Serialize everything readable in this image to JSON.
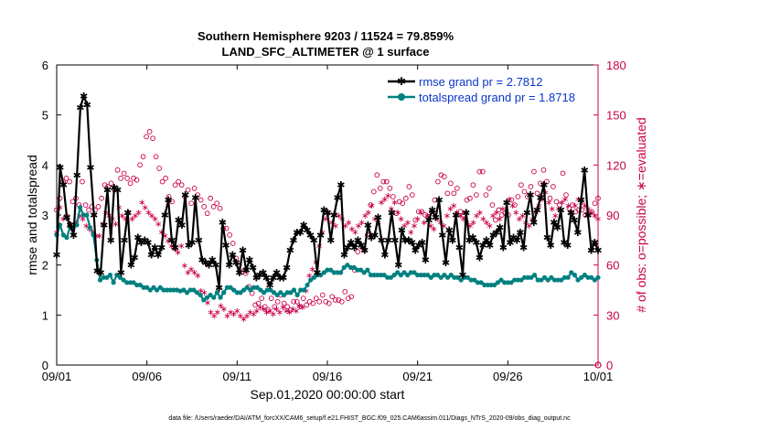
{
  "chart_data": {
    "type": "line",
    "title_line1": "Southern Hemisphere 9203 / 11524 = 79.859%",
    "title_line2": "LAND_SFC_ALTIMETER @ 1 surface",
    "xlabel": "Sep.01,2020 00:00:00 start",
    "ylabel_left": "rmse and totalspread",
    "ylabel_right": "# of obs: o=possible; ∗=evaluated",
    "footer": "data file: /Users/raeder/DAI/ATM_forcXX/CAM6_setup/f.e21.FHIST_BGC.f09_025.CAM6assim.011/Diags_NTrS_2020-09/obs_diag_output.nc",
    "xlim": [
      0,
      30
    ],
    "ylim_left": [
      0,
      6
    ],
    "ylim_right": [
      0,
      180
    ],
    "x_ticks": [
      0,
      5,
      10,
      15,
      20,
      25,
      30
    ],
    "x_tick_labels": [
      "09/01",
      "09/06",
      "09/11",
      "09/16",
      "09/21",
      "09/26",
      "10/01"
    ],
    "y_left_ticks": [
      "0",
      "1",
      "2",
      "3",
      "4",
      "5",
      "6"
    ],
    "y_right_ticks": [
      "0",
      "30",
      "60",
      "90",
      "120",
      "150",
      "180"
    ],
    "colors": {
      "rmse": "#000000",
      "spread": "#008080",
      "obs": "#c8004a",
      "legend_text": "#0a37c8"
    },
    "series": [
      {
        "name": "rmse grand pr = 2.7812",
        "values": [
          2.2,
          3.95,
          3.6,
          2.95,
          2.8,
          2.6,
          3.8,
          5.15,
          5.38,
          5.2,
          3.95,
          3.0,
          1.88,
          1.85,
          2.8,
          3.5,
          2.5,
          3.55,
          3.5,
          1.85,
          2.5,
          3.05,
          2.0,
          2.15,
          2.55,
          2.45,
          2.5,
          2.45,
          2.2,
          2.35,
          2.2,
          2.35,
          3.0,
          3.3,
          2.5,
          2.35,
          2.9,
          2.8,
          3.4,
          2.4,
          2.45,
          3.35,
          2.5,
          2.1,
          2.05,
          2.0,
          2.1,
          2.0,
          1.55,
          2.85,
          2.4,
          2.0,
          2.2,
          2.05,
          1.85,
          2.3,
          1.9,
          2.1,
          1.95,
          1.75,
          1.8,
          1.85,
          1.75,
          1.6,
          1.75,
          1.85,
          1.75,
          1.75,
          1.95,
          2.3,
          2.5,
          2.65,
          2.65,
          2.8,
          2.7,
          2.6,
          2.5,
          1.85,
          2.6,
          3.1,
          3.05,
          2.5,
          3.0,
          3.35,
          3.6,
          2.2,
          2.35,
          2.45,
          2.35,
          2.5,
          2.4,
          2.3,
          2.8,
          2.55,
          2.6,
          2.95,
          2.5,
          2.2,
          2.5,
          3.05,
          2.5,
          2.0,
          2.7,
          2.5,
          2.5,
          2.45,
          2.3,
          2.4,
          2.45,
          2.1,
          2.9,
          3.1,
          2.95,
          3.3,
          2.6,
          2.05,
          2.7,
          2.5,
          3.0,
          2.35,
          1.8,
          3.05,
          2.5,
          2.55,
          2.45,
          2.15,
          2.4,
          2.5,
          2.4,
          2.6,
          2.65,
          2.75,
          2.35,
          3.25,
          2.45,
          2.55,
          2.5,
          2.65,
          2.35,
          3.05,
          3.4,
          2.85,
          3.1,
          3.35,
          3.6,
          2.55,
          2.4,
          2.85,
          2.75,
          3.1,
          2.45,
          2.4,
          3.05,
          2.9,
          2.65,
          3.3,
          3.9,
          3.0,
          2.3,
          2.45,
          2.3
        ]
      },
      {
        "name": "totalspread grand pr = 1.8718",
        "values": [
          2.6,
          2.8,
          2.6,
          2.55,
          2.75,
          2.75,
          2.8,
          3.15,
          3.0,
          3.0,
          2.75,
          2.6,
          2.1,
          1.7,
          1.75,
          1.75,
          1.8,
          1.65,
          1.8,
          1.75,
          1.7,
          1.65,
          1.65,
          1.65,
          1.6,
          1.6,
          1.55,
          1.55,
          1.5,
          1.55,
          1.5,
          1.55,
          1.5,
          1.5,
          1.5,
          1.5,
          1.5,
          1.48,
          1.5,
          1.45,
          1.5,
          1.5,
          1.45,
          1.4,
          1.3,
          1.35,
          1.4,
          1.35,
          1.45,
          1.35,
          1.45,
          1.55,
          1.55,
          1.5,
          1.45,
          1.45,
          1.5,
          1.55,
          1.5,
          1.55,
          1.55,
          1.5,
          1.45,
          1.5,
          1.5,
          1.45,
          1.4,
          1.45,
          1.4,
          1.45,
          1.45,
          1.5,
          1.4,
          1.5,
          1.5,
          1.6,
          1.7,
          1.75,
          1.8,
          1.8,
          1.85,
          1.9,
          1.9,
          1.85,
          1.85,
          1.85,
          1.95,
          2.0,
          1.95,
          1.95,
          1.9,
          1.9,
          1.85,
          1.9,
          1.8,
          1.8,
          1.8,
          1.8,
          1.8,
          1.75,
          1.75,
          1.8,
          1.85,
          1.8,
          1.85,
          1.8,
          1.85,
          1.85,
          1.8,
          1.8,
          1.8,
          1.8,
          1.75,
          1.8,
          1.8,
          1.75,
          1.8,
          1.75,
          1.8,
          1.75,
          1.75,
          1.7,
          1.75,
          1.75,
          1.7,
          1.7,
          1.65,
          1.65,
          1.6,
          1.6,
          1.6,
          1.6,
          1.65,
          1.7,
          1.65,
          1.65,
          1.65,
          1.7,
          1.7,
          1.7,
          1.75,
          1.75,
          1.75,
          1.8,
          1.7,
          1.7,
          1.75,
          1.7,
          1.75,
          1.7,
          1.7,
          1.7,
          1.75,
          1.75,
          1.85,
          1.8,
          1.7,
          1.75,
          1.8,
          1.75,
          1.75,
          1.7,
          1.75
        ]
      },
      {
        "name": "obs possible",
        "values": [
          93,
          100,
          110,
          112,
          110,
          98,
          100,
          96,
          110,
          96,
          93,
          95,
          93,
          95,
          100,
          108,
          107,
          109,
          105,
          117,
          112,
          115,
          112,
          109,
          112,
          111,
          120,
          125,
          137,
          140,
          136,
          125,
          118,
          110,
          112,
          101,
          98,
          108,
          110,
          108,
          101,
          105,
          97,
          106,
          102,
          99,
          95,
          91,
          100,
          95,
          97,
          94,
          82,
          82,
          78,
          73,
          64,
          60,
          56,
          55,
          47,
          43,
          36,
          37,
          40,
          35,
          33,
          40,
          35,
          38,
          42,
          37,
          35,
          33,
          38,
          38,
          35,
          40,
          36,
          38,
          37,
          40,
          38,
          42,
          38,
          37,
          41,
          39,
          39,
          38,
          44,
          40,
          41,
          57,
          68,
          71,
          69,
          78,
          96,
          104,
          114,
          106,
          110,
          110,
          106,
          101,
          91,
          98,
          97,
          100,
          107,
          102,
          87,
          92,
          92,
          90,
          89,
          92,
          99,
          110,
          114,
          113,
          103,
          109,
          103,
          106,
          92,
          90,
          99,
          100,
          108,
          102,
          116,
          116,
          102,
          106,
          96,
          87,
          93,
          90,
          91,
          90,
          99,
          96,
          101,
          108,
          104,
          101,
          107,
          116,
          103,
          109,
          117,
          110,
          100,
          107,
          98,
          96,
          115,
          102,
          94,
          96,
          92,
          93,
          93,
          90,
          91,
          92,
          97,
          100
        ]
      },
      {
        "name": "obs evaluated",
        "values": [
          80,
          95,
          88,
          90,
          85,
          82,
          86,
          90,
          88,
          84,
          82,
          80,
          78,
          78,
          85,
          92,
          90,
          88,
          85,
          95,
          90,
          88,
          92,
          88,
          90,
          92,
          98,
          95,
          92,
          90,
          88,
          85,
          80,
          78,
          75,
          72,
          70,
          68,
          72,
          60,
          56,
          58,
          56,
          54,
          45,
          44,
          38,
          32,
          30,
          32,
          36,
          34,
          30,
          32,
          31,
          33,
          30,
          28,
          30,
          32,
          31,
          33,
          35,
          34,
          32,
          33,
          31,
          34,
          32,
          35,
          33,
          32,
          34,
          33,
          36,
          35,
          45,
          54,
          58,
          62,
          72,
          80,
          88,
          92,
          86,
          84,
          90,
          88,
          84,
          86,
          82,
          80,
          84,
          86,
          90,
          92,
          96,
          88,
          86,
          98,
          100,
          102,
          94,
          98,
          92,
          88,
          84,
          86,
          80,
          84,
          88,
          92,
          86,
          90,
          84,
          82,
          88,
          86,
          84,
          90,
          94,
          96,
          92,
          90,
          88,
          86,
          84,
          86,
          90,
          92,
          88,
          86,
          84,
          90,
          92,
          88,
          94,
          98,
          100,
          96,
          92,
          88,
          90,
          86,
          84,
          88,
          92,
          96,
          100,
          104,
          98,
          94,
          90,
          94,
          98,
          100,
          96,
          92,
          96,
          100,
          98,
          96,
          94,
          92,
          90,
          88
        ]
      }
    ],
    "obs_end_x": 30,
    "obs_end_y": 0
  }
}
